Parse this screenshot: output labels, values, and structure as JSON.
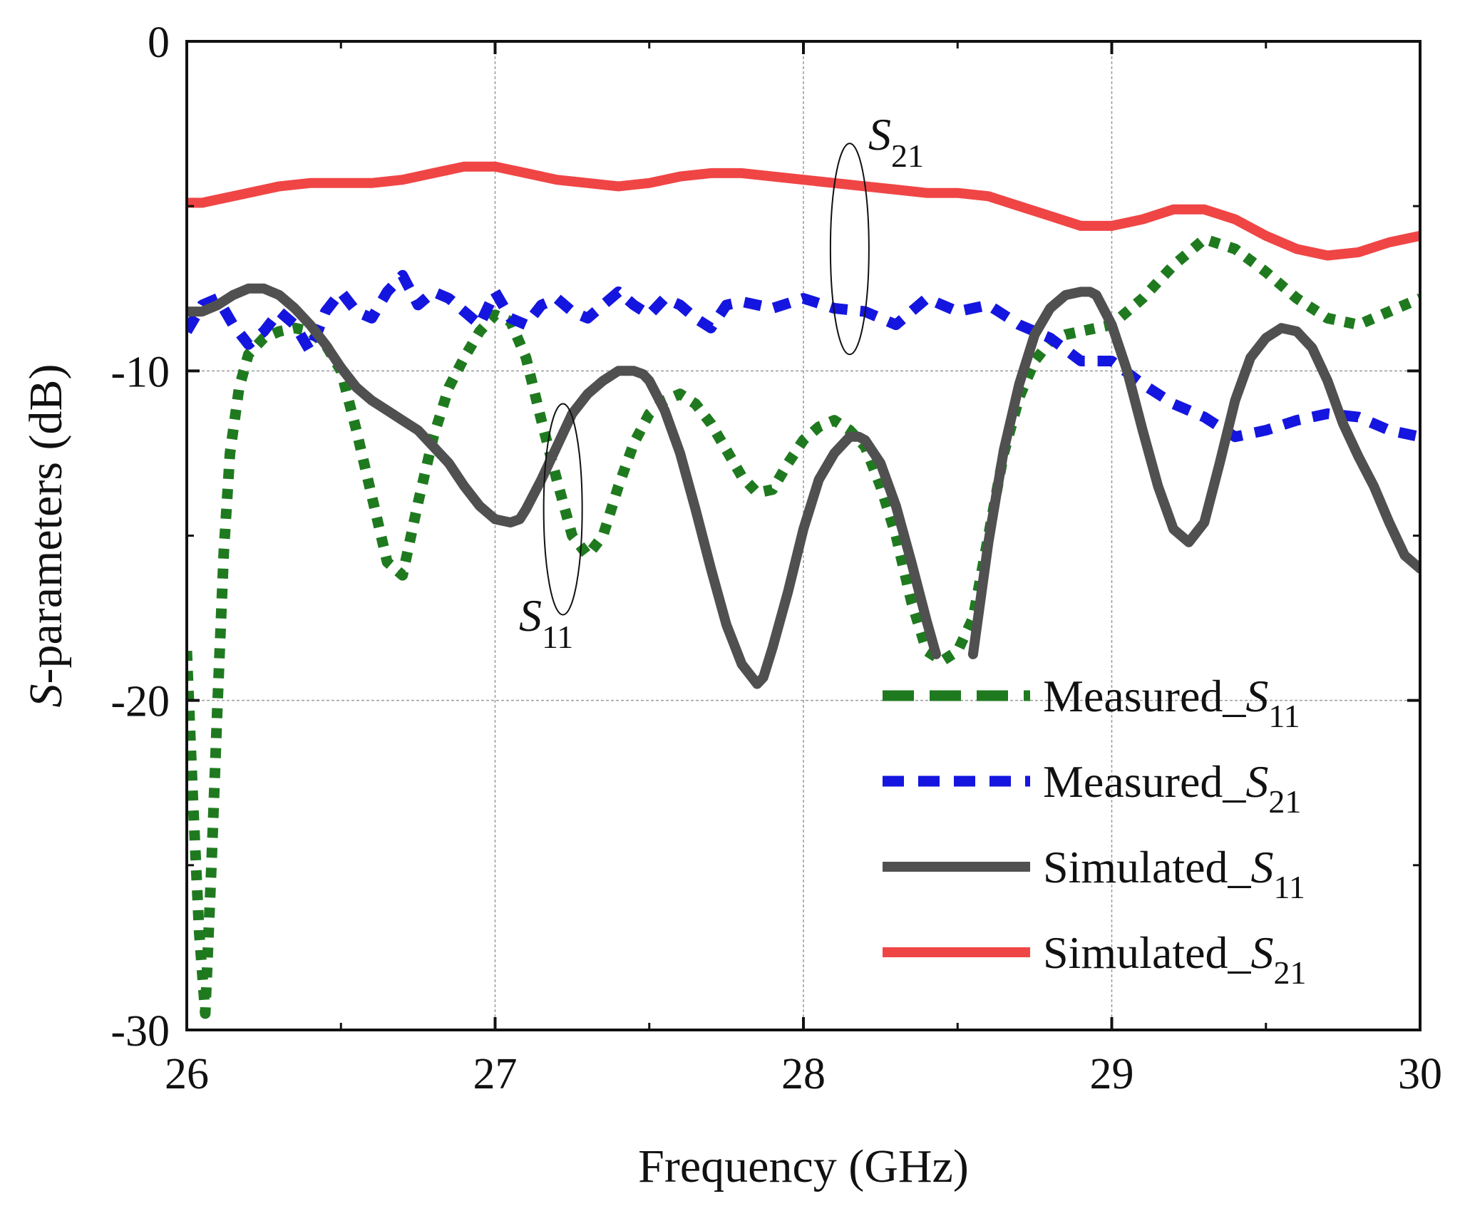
{
  "chart_data": {
    "type": "line",
    "title": "",
    "xlabel": "Frequency (GHz)",
    "ylabel": {
      "italic": "S",
      "rest": "-parameters (dB)"
    },
    "xlim": [
      26,
      30
    ],
    "ylim": [
      -30,
      0
    ],
    "xticks": [
      26,
      27,
      28,
      29,
      30
    ],
    "xtick_labels": [
      "26",
      "27",
      "28",
      "29",
      "30"
    ],
    "yticks": [
      0,
      -10,
      -20,
      -30
    ],
    "ytick_labels": [
      "0",
      "-10",
      "-20",
      "-30"
    ],
    "grid": true,
    "legend_position": "bottom-right",
    "annotations": [
      {
        "name": "S21",
        "main": "S",
        "sub": "21",
        "ellipse_center": [
          28.15,
          -6.3
        ]
      },
      {
        "name": "S11",
        "main": "S",
        "sub": "11",
        "ellipse_center": [
          27.22,
          -14.2
        ]
      }
    ],
    "series": [
      {
        "name": "Measured_S11",
        "label_main": "Measured_",
        "label_italic": "S",
        "label_sub": "11",
        "color": "#1f7a1f",
        "style": "dotted-thick",
        "x": [
          26.0,
          26.02,
          26.04,
          26.06,
          26.08,
          26.1,
          26.12,
          26.14,
          26.17,
          26.2,
          26.25,
          26.3,
          26.35,
          26.4,
          26.45,
          26.5,
          26.55,
          26.6,
          26.65,
          26.7,
          26.75,
          26.8,
          26.85,
          26.9,
          26.95,
          27.0,
          27.05,
          27.1,
          27.15,
          27.2,
          27.25,
          27.3,
          27.35,
          27.4,
          27.45,
          27.5,
          27.55,
          27.6,
          27.65,
          27.7,
          27.75,
          27.8,
          27.85,
          27.9,
          27.95,
          28.0,
          28.05,
          28.1,
          28.15,
          28.2,
          28.25,
          28.3,
          28.35,
          28.4,
          28.45,
          28.5,
          28.55,
          28.6,
          28.65,
          28.7,
          28.75,
          28.8,
          28.85,
          28.9,
          28.95,
          29.0,
          29.1,
          29.2,
          29.3,
          29.4,
          29.5,
          29.6,
          29.7,
          29.8,
          29.9,
          30.0
        ],
        "y": [
          -18.5,
          -23.0,
          -27.0,
          -29.5,
          -25.0,
          -20.0,
          -15.5,
          -12.5,
          -10.5,
          -9.5,
          -9.0,
          -8.8,
          -8.7,
          -8.8,
          -9.2,
          -10.0,
          -11.8,
          -13.8,
          -15.8,
          -16.2,
          -14.0,
          -12.0,
          -10.5,
          -9.6,
          -8.8,
          -8.3,
          -8.5,
          -9.6,
          -11.5,
          -13.3,
          -15.0,
          -15.6,
          -15.0,
          -13.5,
          -12.2,
          -11.3,
          -10.9,
          -10.7,
          -11.0,
          -11.6,
          -12.4,
          -13.2,
          -13.7,
          -13.6,
          -12.8,
          -12.1,
          -11.7,
          -11.5,
          -11.8,
          -12.3,
          -13.5,
          -15.0,
          -17.0,
          -18.5,
          -18.8,
          -18.5,
          -17.5,
          -15.0,
          -12.5,
          -10.8,
          -9.7,
          -9.1,
          -8.9,
          -8.8,
          -8.7,
          -8.6,
          -7.8,
          -6.8,
          -6.0,
          -6.3,
          -7.0,
          -7.8,
          -8.4,
          -8.6,
          -8.2,
          -7.8
        ]
      },
      {
        "name": "Measured_S21",
        "label_main": "Measured_",
        "label_italic": "S",
        "label_sub": "21",
        "color": "#1515e0",
        "style": "dashed",
        "x": [
          26.0,
          26.05,
          26.1,
          26.15,
          26.2,
          26.25,
          26.3,
          26.35,
          26.4,
          26.45,
          26.5,
          26.55,
          26.6,
          26.65,
          26.7,
          26.75,
          26.8,
          26.85,
          26.9,
          26.95,
          27.0,
          27.05,
          27.1,
          27.15,
          27.2,
          27.25,
          27.3,
          27.35,
          27.4,
          27.45,
          27.5,
          27.55,
          27.6,
          27.65,
          27.7,
          27.75,
          27.8,
          27.9,
          28.0,
          28.1,
          28.2,
          28.3,
          28.4,
          28.5,
          28.6,
          28.7,
          28.8,
          28.9,
          29.0,
          29.1,
          29.2,
          29.3,
          29.4,
          29.5,
          29.6,
          29.7,
          29.8,
          29.9,
          30.0
        ],
        "y": [
          -8.8,
          -8.0,
          -7.8,
          -8.6,
          -9.2,
          -8.8,
          -8.2,
          -8.6,
          -9.4,
          -8.2,
          -7.6,
          -8.2,
          -8.4,
          -7.6,
          -7.1,
          -8.0,
          -7.6,
          -7.8,
          -8.2,
          -8.6,
          -7.6,
          -8.4,
          -8.6,
          -8.0,
          -7.8,
          -8.2,
          -8.4,
          -8.0,
          -7.6,
          -8.0,
          -8.3,
          -7.8,
          -8.0,
          -8.4,
          -8.7,
          -8.0,
          -7.9,
          -8.1,
          -7.8,
          -8.1,
          -8.2,
          -8.6,
          -7.8,
          -8.2,
          -8.0,
          -8.6,
          -9.0,
          -9.7,
          -9.7,
          -10.4,
          -11.0,
          -11.4,
          -12.0,
          -11.8,
          -11.5,
          -11.3,
          -11.4,
          -11.8,
          -12.0
        ]
      },
      {
        "name": "Simulated_S11",
        "label_main": "Simulated_",
        "label_italic": "S",
        "label_sub": "11",
        "color": "#505050",
        "style": "solid-thick",
        "x": [
          26.0,
          26.05,
          26.1,
          26.15,
          26.2,
          26.25,
          26.3,
          26.35,
          26.4,
          26.45,
          26.5,
          26.55,
          26.6,
          26.65,
          26.7,
          26.75,
          26.8,
          26.85,
          26.9,
          26.95,
          27.0,
          27.05,
          27.08,
          27.1,
          27.15,
          27.2,
          27.25,
          27.3,
          27.35,
          27.4,
          27.45,
          27.48,
          27.5,
          27.55,
          27.6,
          27.65,
          27.7,
          27.75,
          27.8,
          27.85,
          27.87,
          27.9,
          27.95,
          28.0,
          28.05,
          28.1,
          28.15,
          28.18,
          28.2,
          28.25,
          28.3,
          28.35,
          28.4,
          28.43
        ],
        "y": [
          -8.2,
          -8.2,
          -8.0,
          -7.7,
          -7.5,
          -7.5,
          -7.7,
          -8.1,
          -8.6,
          -9.2,
          -9.9,
          -10.5,
          -10.9,
          -11.2,
          -11.5,
          -11.8,
          -12.3,
          -12.8,
          -13.5,
          -14.1,
          -14.5,
          -14.6,
          -14.5,
          -14.2,
          -13.3,
          -12.3,
          -11.3,
          -10.7,
          -10.3,
          -10.0,
          -10.0,
          -10.1,
          -10.3,
          -11.2,
          -12.5,
          -14.2,
          -16.0,
          -17.7,
          -18.9,
          -19.5,
          -19.3,
          -18.4,
          -16.7,
          -14.8,
          -13.3,
          -12.5,
          -12.0,
          -12.0,
          -12.1,
          -12.8,
          -14.1,
          -15.8,
          -17.6,
          -18.6
        ]
      },
      {
        "name": "Simulated_S11_b",
        "color": "#505050",
        "style": "solid-thick",
        "x": [
          28.55,
          28.6,
          28.65,
          28.7,
          28.75,
          28.8,
          28.85,
          28.9,
          28.93,
          28.95,
          29.0,
          29.05,
          29.1,
          29.15,
          29.2,
          29.25,
          29.3,
          29.35,
          29.4,
          29.45,
          29.5,
          29.55,
          29.6,
          29.65,
          29.7,
          29.75,
          29.8,
          29.85,
          29.9,
          29.95,
          30.0
        ],
        "y": [
          -18.6,
          -15.2,
          -12.4,
          -10.4,
          -8.9,
          -8.1,
          -7.7,
          -7.6,
          -7.6,
          -7.7,
          -8.6,
          -10.0,
          -11.8,
          -13.5,
          -14.8,
          -15.2,
          -14.6,
          -12.8,
          -10.9,
          -9.6,
          -9.0,
          -8.7,
          -8.8,
          -9.3,
          -10.3,
          -11.6,
          -12.6,
          -13.5,
          -14.6,
          -15.6,
          -16.0
        ]
      },
      {
        "name": "Simulated_S21",
        "label_main": "Simulated_",
        "label_italic": "S",
        "label_sub": "21",
        "color": "#f04545",
        "style": "solid-thick",
        "x": [
          26.0,
          26.05,
          26.1,
          26.2,
          26.3,
          26.4,
          26.5,
          26.6,
          26.7,
          26.8,
          26.9,
          27.0,
          27.1,
          27.2,
          27.3,
          27.4,
          27.5,
          27.6,
          27.7,
          27.8,
          27.9,
          28.0,
          28.1,
          28.2,
          28.3,
          28.4,
          28.5,
          28.6,
          28.7,
          28.8,
          28.9,
          29.0,
          29.1,
          29.2,
          29.3,
          29.4,
          29.5,
          29.6,
          29.7,
          29.8,
          29.9,
          30.0
        ],
        "y": [
          -4.9,
          -4.9,
          -4.8,
          -4.6,
          -4.4,
          -4.3,
          -4.3,
          -4.3,
          -4.2,
          -4.0,
          -3.8,
          -3.8,
          -4.0,
          -4.2,
          -4.3,
          -4.4,
          -4.3,
          -4.1,
          -4.0,
          -4.0,
          -4.1,
          -4.2,
          -4.3,
          -4.4,
          -4.5,
          -4.6,
          -4.6,
          -4.7,
          -5.0,
          -5.3,
          -5.6,
          -5.6,
          -5.4,
          -5.1,
          -5.1,
          -5.4,
          -5.9,
          -6.3,
          -6.5,
          -6.4,
          -6.1,
          -5.9
        ]
      }
    ]
  }
}
